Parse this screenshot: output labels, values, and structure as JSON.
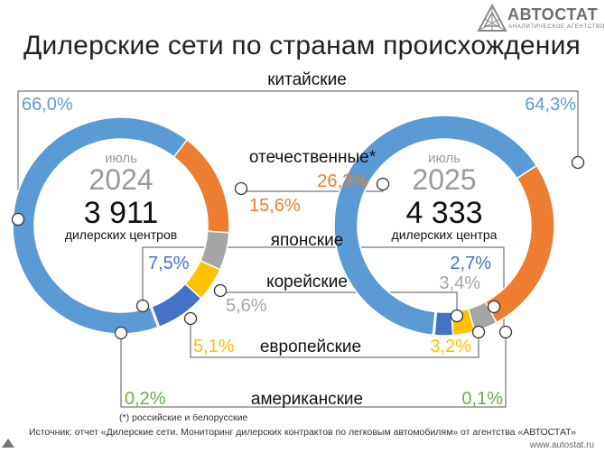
{
  "title": "Дилерские сети по странам происхождения",
  "logo": {
    "name": "АВТОСТАТ",
    "tagline": "АНАЛИТИЧЕСКОЕ АГЕНТСТВО"
  },
  "footnote": "(*) российские и белорусские",
  "source": "Источник: отчет «Дилерские сети. Мониторинг дилерских контрактов по легковым автомобилям» от агентства «АВТОСТАТ»",
  "site": "www.autostat.ru",
  "colors": {
    "chinese": "#5b9bd5",
    "domestic": "#ed7d31",
    "japanese": "#4472c4",
    "korean": "#a5a5a5",
    "european": "#ffc000",
    "american": "#70ad47",
    "line": "#555555"
  },
  "chart_data": [
    {
      "type": "pie",
      "subtype": "donut",
      "center": {
        "month": "июль",
        "year": "2024",
        "count": "3 911",
        "unit": "дилерских центров"
      },
      "categories": [
        "китайские",
        "отечественные*",
        "корейские",
        "европейские",
        "японские",
        "американские"
      ],
      "values": [
        66.0,
        15.6,
        5.6,
        5.1,
        7.5,
        0.2
      ],
      "value_labels": [
        "66,0%",
        "15,6%",
        "5,6%",
        "5,1%",
        "7,5%",
        "0,2%"
      ]
    },
    {
      "type": "pie",
      "subtype": "donut",
      "center": {
        "month": "июль",
        "year": "2025",
        "count": "4 333",
        "unit": "дилерских центра"
      },
      "categories": [
        "китайские",
        "отечественные*",
        "корейские",
        "европейские",
        "японские",
        "американские"
      ],
      "values": [
        64.3,
        26.3,
        3.4,
        3.2,
        2.7,
        0.1
      ],
      "value_labels": [
        "64,3%",
        "26,3%",
        "3,4%",
        "3,2%",
        "2,7%",
        "0,1%"
      ]
    }
  ],
  "category_labels": {
    "chinese": "китайские",
    "domestic": "отечественные*",
    "japanese": "японские",
    "korean": "корейские",
    "european": "европейские",
    "american": "американские"
  }
}
